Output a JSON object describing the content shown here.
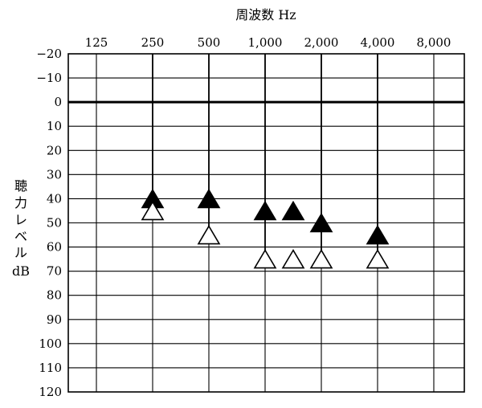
{
  "chart_data": {
    "type": "scatter",
    "title": "",
    "xlabel": "周波数 Hz",
    "ylabel_lines": [
      "聴",
      "力",
      "レ",
      "ベ",
      "ル",
      "dB"
    ],
    "x_categories": [
      "125",
      "250",
      "500",
      "1,000",
      "2,000",
      "4,000",
      "8,000"
    ],
    "y_ticks": [
      "−20",
      "−10",
      "0",
      "10",
      "20",
      "30",
      "40",
      "50",
      "60",
      "70",
      "80",
      "90",
      "100",
      "110",
      "120"
    ],
    "ylim": [
      -20,
      120
    ],
    "y_inverted": true,
    "reference_line_y": 0,
    "grid": true,
    "series": [
      {
        "marker": "filled-triangle",
        "color": "#000000",
        "points": [
          {
            "x": "250",
            "y": 40
          },
          {
            "x": "500",
            "y": 40
          },
          {
            "x": "1,000",
            "y": 45
          },
          {
            "x": "1,500",
            "y": 45
          },
          {
            "x": "2,000",
            "y": 50
          },
          {
            "x": "4,000",
            "y": 55
          }
        ]
      },
      {
        "marker": "open-triangle",
        "color": "#000000",
        "points": [
          {
            "x": "250",
            "y": 45
          },
          {
            "x": "500",
            "y": 55
          },
          {
            "x": "1,000",
            "y": 65
          },
          {
            "x": "1,500",
            "y": 65
          },
          {
            "x": "2,000",
            "y": 65
          },
          {
            "x": "4,000",
            "y": 65
          }
        ]
      }
    ],
    "stems": [
      {
        "x": "250",
        "from": -20,
        "to": 45
      },
      {
        "x": "500",
        "from": -20,
        "to": 55
      },
      {
        "x": "1,000",
        "from": -20,
        "to": 65
      },
      {
        "x": "2,000",
        "from": -20,
        "to": 65
      },
      {
        "x": "4,000",
        "from": -20,
        "to": 65
      }
    ]
  }
}
